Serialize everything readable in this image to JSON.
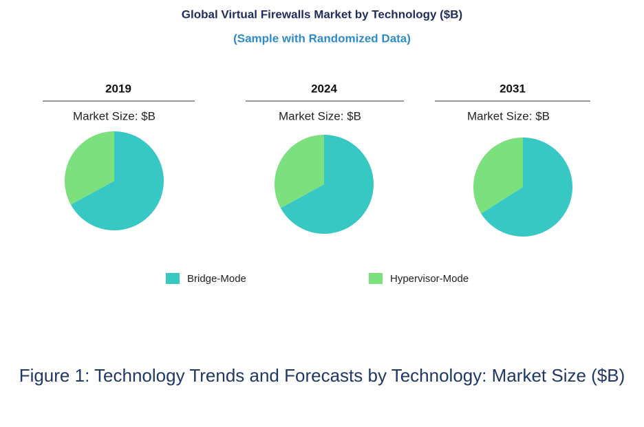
{
  "title": "Global Virtual Firewalls Market by Technology ($B)",
  "subtitle": "(Sample with Randomized Data)",
  "caption": "Figure 1: Technology Trends and Forecasts by Technology: Market Size ($B)",
  "chart_data": [
    {
      "type": "pie",
      "title": "2019",
      "subtitle": "Market Size: $B",
      "categories": [
        "Bridge-Mode",
        "Hypervisor-Mode"
      ],
      "values": [
        67,
        33
      ],
      "colors": [
        "#38c8c4",
        "#7de07e"
      ]
    },
    {
      "type": "pie",
      "title": "2024",
      "subtitle": "Market Size: $B",
      "categories": [
        "Bridge-Mode",
        "Hypervisor-Mode"
      ],
      "values": [
        67,
        33
      ],
      "colors": [
        "#38c8c4",
        "#7de07e"
      ]
    },
    {
      "type": "pie",
      "title": "2031",
      "subtitle": "Market Size: $B",
      "categories": [
        "Bridge-Mode",
        "Hypervisor-Mode"
      ],
      "values": [
        66,
        34
      ],
      "colors": [
        "#38c8c4",
        "#7de07e"
      ]
    }
  ]
}
